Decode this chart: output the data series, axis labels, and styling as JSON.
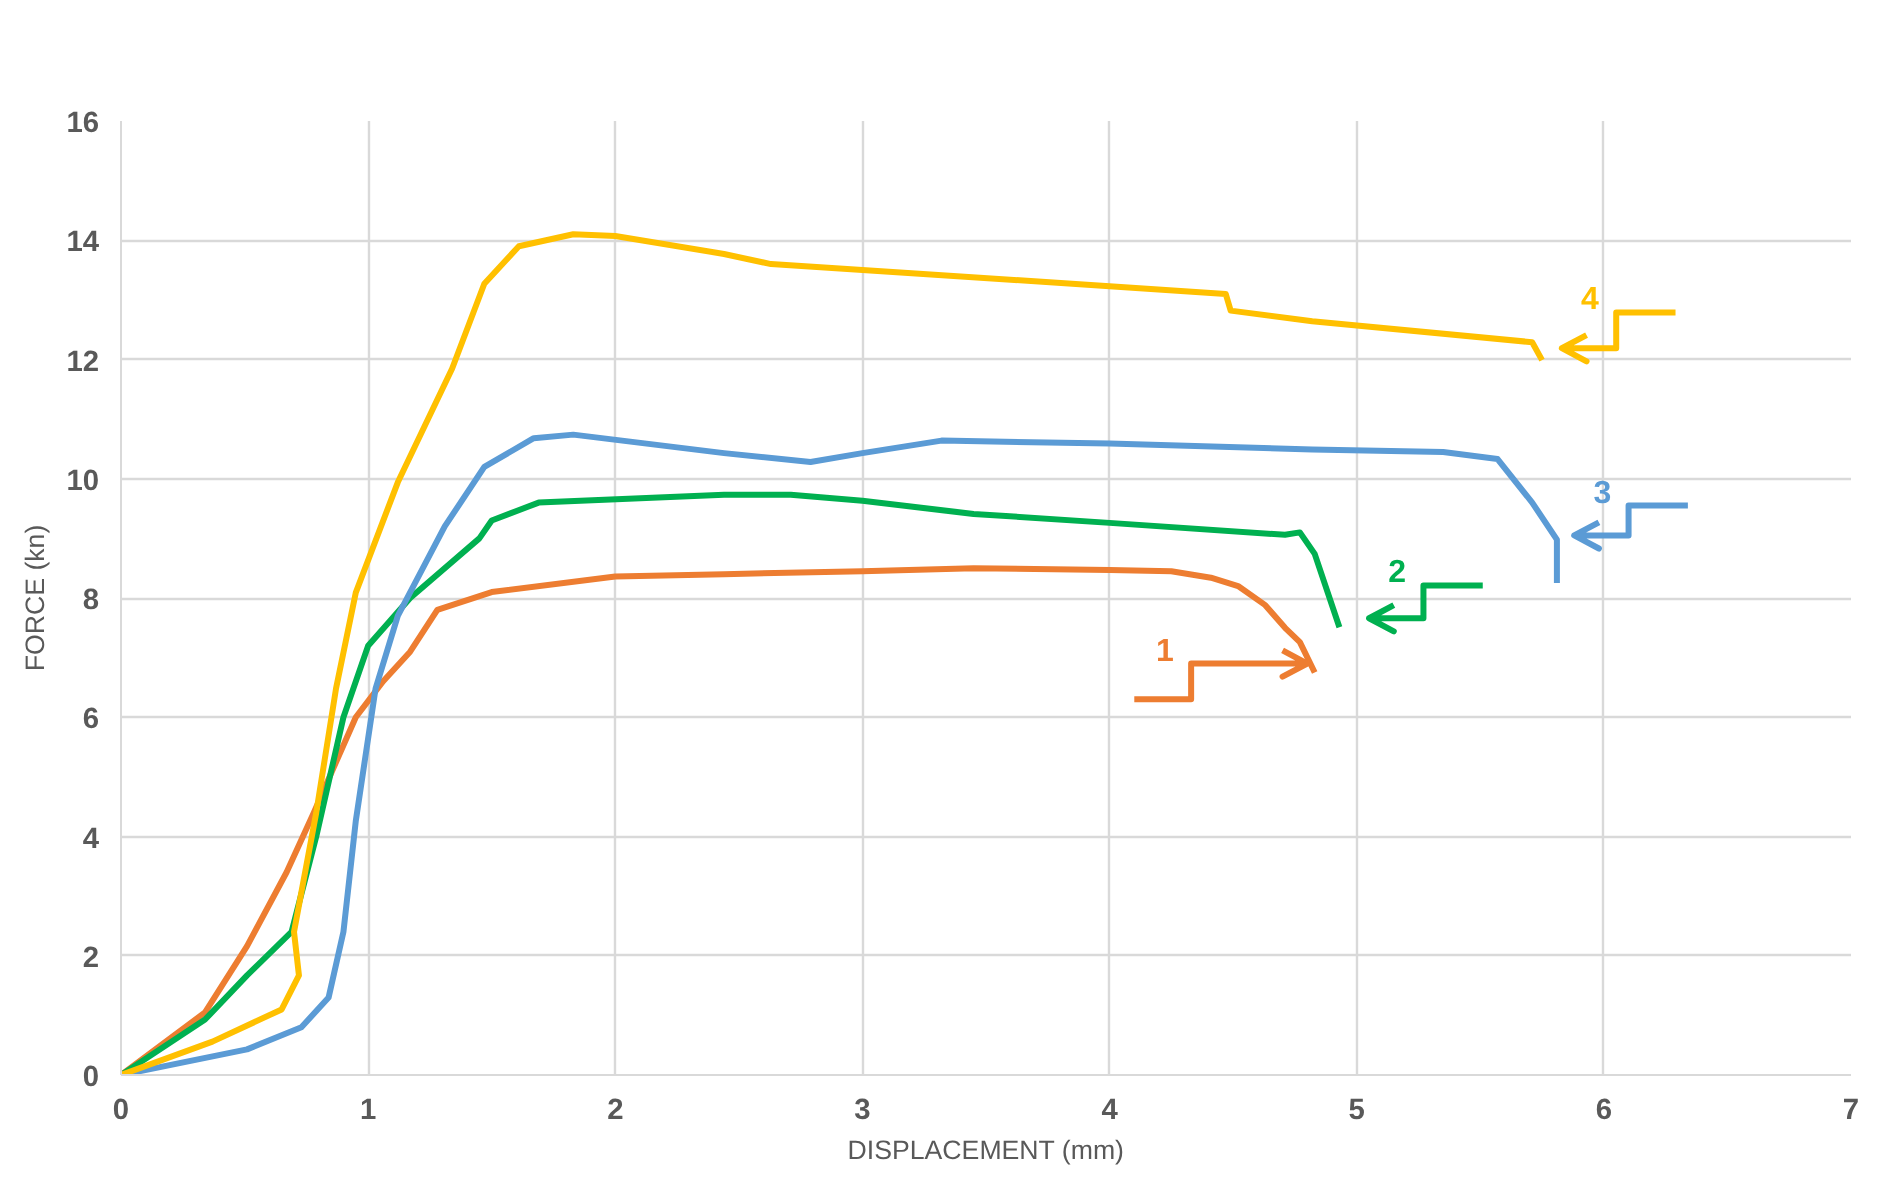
{
  "chart_data": {
    "type": "line",
    "xlabel": "DISPLACEMENT (mm)",
    "ylabel": "FORCE (kn)",
    "xlim": [
      0,
      7
    ],
    "ylim": [
      0,
      16
    ],
    "xticks": [
      0,
      1,
      2,
      3,
      4,
      5,
      6,
      7
    ],
    "yticks": [
      0,
      2,
      4,
      6,
      8,
      10,
      12,
      14,
      16
    ],
    "grid": true,
    "line_style": "solid",
    "marker": "none",
    "series": [
      {
        "color": "#ed7d31",
        "x": [
          0,
          0.34,
          0.51,
          0.67,
          0.78,
          0.95,
          1.06,
          1.17,
          1.28,
          1.5,
          2.0,
          2.44,
          3.0,
          3.45,
          4.0,
          4.25,
          4.41,
          4.52,
          4.63,
          4.71,
          4.77,
          4.83
        ],
        "values": [
          0,
          1.05,
          2.16,
          3.4,
          4.4,
          6.0,
          6.6,
          7.1,
          7.8,
          8.1,
          8.36,
          8.4,
          8.45,
          8.5,
          8.47,
          8.45,
          8.34,
          8.2,
          7.88,
          7.5,
          7.26,
          6.75
        ]
      },
      {
        "color": "#00b050",
        "x": [
          0,
          0.34,
          0.51,
          0.69,
          0.79,
          0.9,
          1.0,
          1.17,
          1.45,
          1.5,
          1.69,
          2.44,
          2.71,
          3.0,
          3.45,
          4.0,
          4.71,
          4.77,
          4.83,
          4.93
        ],
        "values": [
          0,
          0.93,
          1.67,
          2.4,
          4.0,
          6.0,
          7.2,
          8.0,
          9.0,
          9.3,
          9.6,
          9.73,
          9.73,
          9.63,
          9.41,
          9.26,
          9.06,
          9.1,
          8.74,
          7.51
        ]
      },
      {
        "color": "#5b9bd5",
        "x": [
          0,
          0.51,
          0.73,
          0.84,
          0.9,
          0.95,
          1.03,
          1.12,
          1.31,
          1.47,
          1.67,
          1.83,
          2.44,
          2.79,
          3.0,
          3.32,
          4.0,
          4.82,
          5.35,
          5.57,
          5.71,
          5.81,
          5.81
        ],
        "values": [
          0,
          0.43,
          0.8,
          1.3,
          2.4,
          4.26,
          6.48,
          7.7,
          9.2,
          10.2,
          10.68,
          10.74,
          10.43,
          10.28,
          10.43,
          10.64,
          10.59,
          10.49,
          10.45,
          10.33,
          9.6,
          8.98,
          8.25
        ]
      },
      {
        "color": "#ffc000",
        "x": [
          0,
          0.37,
          0.65,
          0.72,
          0.7,
          0.79,
          0.87,
          0.95,
          1.12,
          1.34,
          1.47,
          1.61,
          1.83,
          2.0,
          2.44,
          2.63,
          3.0,
          4.0,
          4.47,
          4.49,
          4.82,
          5.71,
          5.75
        ],
        "values": [
          0,
          0.56,
          1.1,
          1.67,
          2.4,
          4.4,
          6.48,
          8.09,
          9.94,
          11.85,
          13.27,
          13.9,
          14.1,
          14.07,
          13.77,
          13.6,
          13.5,
          13.23,
          13.1,
          12.82,
          12.64,
          12.29,
          11.99
        ]
      }
    ],
    "annotations": [
      "1",
      {
        "text": "2",
        "x": 4.93,
        "y": 7.51
      },
      {
        "text": "3",
        "x": 5.81,
        "y": 8.25
      },
      {
        "text": "4",
        "x": 5.75,
        "y": 11.99
      }
    ]
  }
}
